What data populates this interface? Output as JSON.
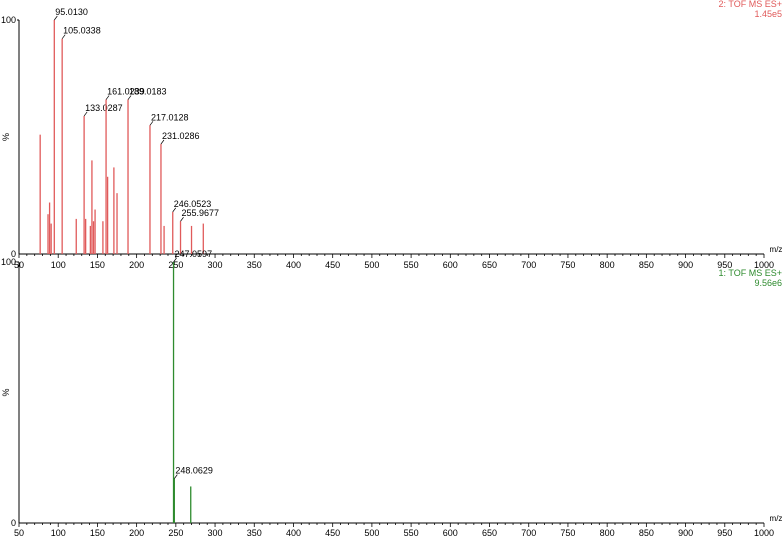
{
  "chart_data": [
    {
      "type": "bar",
      "panel": "top",
      "header_title": "2: TOF MS ES+",
      "header_intensity": "1.45e5",
      "color": "#e05a5a",
      "ylabel": "%",
      "y_ticks": [
        "0",
        "100"
      ],
      "xlabel": "m/z",
      "xlim": [
        50,
        1000
      ],
      "ylim": [
        0,
        100
      ],
      "x_ticks": [
        50,
        100,
        150,
        200,
        250,
        300,
        350,
        400,
        450,
        500,
        550,
        600,
        650,
        700,
        750,
        800,
        850,
        900,
        950,
        1000
      ],
      "peaks": [
        {
          "x": 77.0,
          "y": 51
        },
        {
          "x": 87.0,
          "y": 17
        },
        {
          "x": 89.0,
          "y": 22
        },
        {
          "x": 91.0,
          "y": 13
        },
        {
          "x": 95.013,
          "y": 100,
          "label": "95.0130"
        },
        {
          "x": 105.0338,
          "y": 92,
          "label": "105.0338"
        },
        {
          "x": 123.0,
          "y": 15
        },
        {
          "x": 133.0287,
          "y": 59,
          "label": "133.0287"
        },
        {
          "x": 135.0,
          "y": 15
        },
        {
          "x": 141.0,
          "y": 12
        },
        {
          "x": 143.0,
          "y": 40
        },
        {
          "x": 145.0,
          "y": 14
        },
        {
          "x": 147.0,
          "y": 19
        },
        {
          "x": 157.0,
          "y": 14
        },
        {
          "x": 161.0239,
          "y": 66,
          "label": "161.0239"
        },
        {
          "x": 163.0,
          "y": 33
        },
        {
          "x": 171.0,
          "y": 37
        },
        {
          "x": 175.0,
          "y": 26
        },
        {
          "x": 189.0183,
          "y": 66,
          "label": "189.0183"
        },
        {
          "x": 217.0128,
          "y": 55,
          "label": "217.0128"
        },
        {
          "x": 231.0286,
          "y": 47,
          "label": "231.0286"
        },
        {
          "x": 235.0,
          "y": 12
        },
        {
          "x": 246.0523,
          "y": 18,
          "label": "246.0523"
        },
        {
          "x": 255.9677,
          "y": 14,
          "label": "255.9677"
        },
        {
          "x": 270.0,
          "y": 12
        },
        {
          "x": 285.0,
          "y": 13
        }
      ]
    },
    {
      "type": "bar",
      "panel": "bottom",
      "header_title": "1: TOF MS ES+",
      "header_intensity": "9.56e6",
      "color": "#2e8b2e",
      "ylabel": "%",
      "y_ticks": [
        "0",
        "100"
      ],
      "xlabel": "m/z",
      "xlim": [
        50,
        1000
      ],
      "ylim": [
        0,
        100
      ],
      "x_ticks": [
        50,
        100,
        150,
        200,
        250,
        300,
        350,
        400,
        450,
        500,
        550,
        600,
        650,
        700,
        750,
        800,
        850,
        900,
        950,
        1000
      ],
      "peaks": [
        {
          "x": 247.0597,
          "y": 100,
          "label": "247.0597"
        },
        {
          "x": 248.0629,
          "y": 17,
          "label": "248.0629"
        },
        {
          "x": 269.0,
          "y": 14
        }
      ]
    }
  ]
}
